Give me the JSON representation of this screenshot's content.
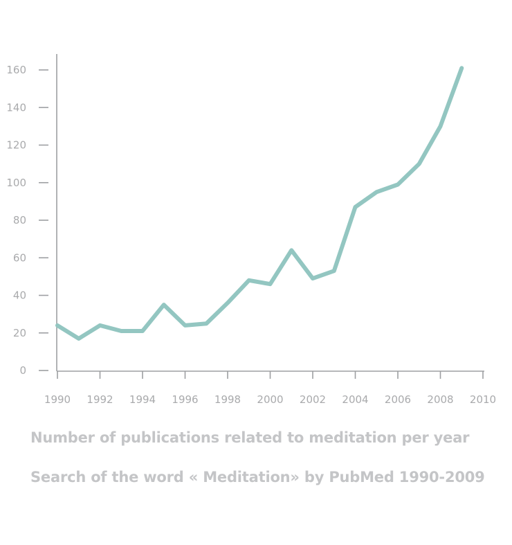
{
  "chart_data": {
    "type": "line",
    "title": "Number of publications related to meditation per year",
    "subtitle": "Search of the word « Meditation» by PubMed 1990-2009",
    "xlabel": "",
    "ylabel": "",
    "xlim": [
      1990,
      2010
    ],
    "ylim": [
      0,
      160
    ],
    "x_ticks": [
      "1990",
      "1992",
      "1994",
      "1996",
      "1998",
      "2000",
      "2002",
      "2004",
      "2006",
      "2008",
      "2010"
    ],
    "y_ticks": [
      "0",
      "20",
      "40",
      "60",
      "80",
      "100",
      "120",
      "140",
      "160"
    ],
    "grid": false,
    "legend": "none",
    "line_color": "#93c6c1",
    "axis_color": "#9d9fa2",
    "text_color": "#a9aaac",
    "series": [
      {
        "x": [
          1990,
          1991,
          1992,
          1993,
          1994,
          1995,
          1996,
          1997,
          1998,
          1999,
          2000,
          2001,
          2002,
          2003,
          2004,
          2005,
          2006,
          2007,
          2008,
          2009
        ],
        "values": [
          24,
          17,
          24,
          21,
          21,
          35,
          24,
          25,
          36,
          48,
          46,
          64,
          49,
          53,
          87,
          95,
          99,
          110,
          130,
          161
        ]
      }
    ]
  }
}
